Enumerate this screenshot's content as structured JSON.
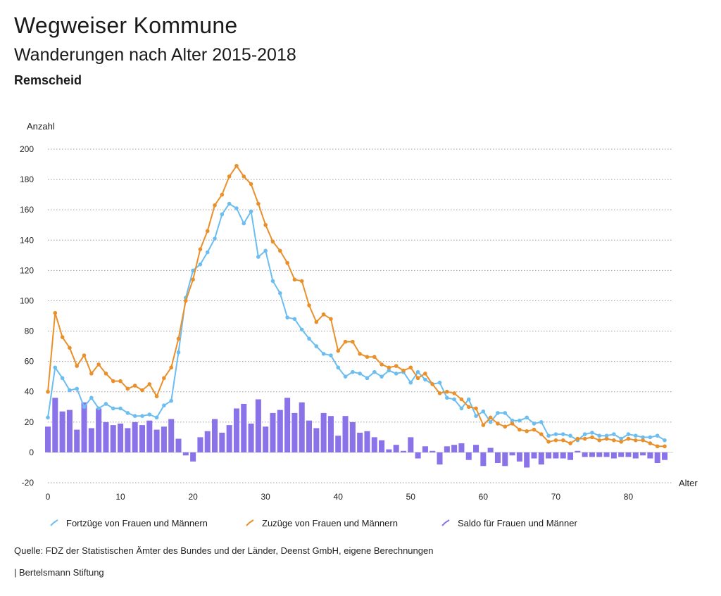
{
  "header": {
    "title": "Wegweiser Kommune",
    "subtitle": "Wanderungen nach Alter 2015-2018",
    "region": "Remscheid"
  },
  "footer": {
    "source": "Quelle: FDZ der Statistischen Ämter des Bundes und der Länder, Deenst GmbH, eigene Berechnungen",
    "publisher": "| Bertelsmann Stiftung"
  },
  "colors": {
    "fortzuege": "#6cbdf0",
    "zuzuege": "#e9902a",
    "saldo": "#8a72e8",
    "grid": "#9a9a9a"
  },
  "chart_data": {
    "type": "bar+line",
    "ylabel": "Anzahl",
    "xlabel": "Alter",
    "ylim": [
      -20,
      200
    ],
    "yticks": [
      -20,
      0,
      20,
      40,
      60,
      80,
      100,
      120,
      140,
      160,
      180,
      200
    ],
    "xlim": [
      0,
      85
    ],
    "xticks": [
      0,
      10,
      20,
      30,
      40,
      50,
      60,
      70,
      80
    ],
    "grid": "horizontal dotted",
    "legend_position": "bottom",
    "x": [
      0,
      1,
      2,
      3,
      4,
      5,
      6,
      7,
      8,
      9,
      10,
      11,
      12,
      13,
      14,
      15,
      16,
      17,
      18,
      19,
      20,
      21,
      22,
      23,
      24,
      25,
      26,
      27,
      28,
      29,
      30,
      31,
      32,
      33,
      34,
      35,
      36,
      37,
      38,
      39,
      40,
      41,
      42,
      43,
      44,
      45,
      46,
      47,
      48,
      49,
      50,
      51,
      52,
      53,
      54,
      55,
      56,
      57,
      58,
      59,
      60,
      61,
      62,
      63,
      64,
      65,
      66,
      67,
      68,
      69,
      70,
      71,
      72,
      73,
      74,
      75,
      76,
      77,
      78,
      79,
      80,
      81,
      82,
      83,
      84,
      85
    ],
    "series": [
      {
        "name": "Fortzüge von Frauen und Männern",
        "kind": "line",
        "values": [
          23,
          56,
          49,
          41,
          42,
          30,
          36,
          29,
          32,
          29,
          29,
          26,
          24,
          24,
          25,
          23,
          31,
          34,
          66,
          102,
          120,
          124,
          132,
          141,
          157,
          164,
          161,
          151,
          159,
          129,
          133,
          113,
          105,
          89,
          88,
          81,
          75,
          70,
          65,
          64,
          56,
          50,
          53,
          52,
          49,
          53,
          50,
          54,
          52,
          53,
          46,
          53,
          48,
          45,
          46,
          36,
          35,
          29,
          35,
          24,
          27,
          20,
          26,
          26,
          21,
          21,
          23,
          19,
          20,
          11,
          12,
          12,
          11,
          8,
          12,
          13,
          11,
          11,
          12,
          9,
          12,
          11,
          10,
          10,
          11,
          8
        ]
      },
      {
        "name": "Zuzüge von Frauen und Männern",
        "kind": "line",
        "values": [
          40,
          92,
          76,
          69,
          57,
          64,
          52,
          58,
          52,
          47,
          47,
          42,
          44,
          41,
          45,
          37,
          49,
          56,
          75,
          100,
          114,
          134,
          146,
          163,
          170,
          182,
          189,
          182,
          177,
          164,
          150,
          139,
          133,
          125,
          114,
          113,
          97,
          86,
          91,
          88,
          67,
          73,
          73,
          65,
          63,
          63,
          58,
          56,
          57,
          54,
          56,
          49,
          52,
          45,
          39,
          40,
          39,
          35,
          30,
          29,
          18,
          23,
          19,
          17,
          19,
          15,
          14,
          15,
          12,
          7,
          8,
          8,
          6,
          9,
          9,
          10,
          8,
          9,
          8,
          7,
          9,
          8,
          8,
          6,
          4,
          4
        ]
      },
      {
        "name": "Saldo für Frauen und Männer",
        "kind": "bar",
        "values": [
          17,
          36,
          27,
          28,
          15,
          33,
          16,
          29,
          20,
          18,
          19,
          16,
          20,
          18,
          21,
          15,
          17,
          22,
          9,
          -2,
          -6,
          10,
          14,
          22,
          13,
          18,
          29,
          32,
          19,
          35,
          17,
          26,
          28,
          36,
          26,
          33,
          21,
          16,
          26,
          24,
          11,
          24,
          20,
          13,
          14,
          10,
          8,
          2,
          5,
          1,
          10,
          -4,
          4,
          1,
          -8,
          4,
          5,
          6,
          -5,
          5,
          -9,
          3,
          -7,
          -9,
          -2,
          -6,
          -10,
          -4,
          -8,
          -4,
          -4,
          -4,
          -5,
          1,
          -3,
          -3,
          -3,
          -3,
          -4,
          -3,
          -3,
          -4,
          -2,
          -4,
          -7,
          -5
        ]
      }
    ]
  }
}
